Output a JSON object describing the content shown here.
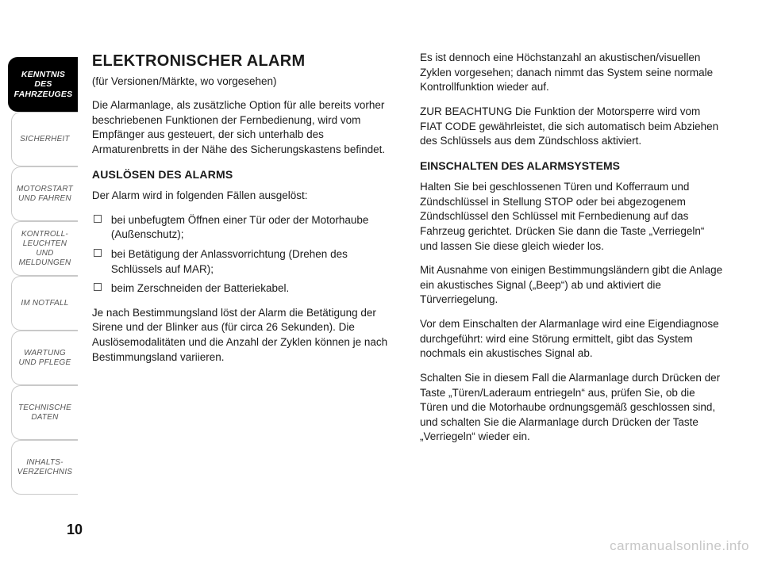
{
  "page_number": "10",
  "watermark": "carmanualsonline.info",
  "sidebar": {
    "active_bg": "#000000",
    "active_fg": "#ffffff",
    "inactive_fg": "#555555",
    "border": "#c9c9c9",
    "items": [
      {
        "label": "KENNTNIS\nDES FAHRZEUGES",
        "active": true
      },
      {
        "label": "SICHERHEIT",
        "active": false
      },
      {
        "label": "MOTORSTART\nUND FAHREN",
        "active": false
      },
      {
        "label": "KONTROLL-\nLEUCHTEN\nUND MELDUNGEN",
        "active": false
      },
      {
        "label": "IM NOTFALL",
        "active": false
      },
      {
        "label": "WARTUNG\nUND PFLEGE",
        "active": false
      },
      {
        "label": "TECHNISCHE\nDATEN",
        "active": false
      },
      {
        "label": "INHALTS-\nVERZEICHNIS",
        "active": false
      }
    ]
  },
  "content": {
    "title": "ELEKTRONISCHER ALARM",
    "subtitle": "(für Versionen/Märkte, wo vorgesehen)",
    "col1": {
      "intro": "Die Alarmanlage, als zusätzliche Option für alle bereits vorher beschriebenen Funktionen der Fernbedienung, wird vom Empfänger aus gesteuert, der sich unterhalb des Armaturenbretts in der Nähe des Sicherungskastens befindet.",
      "heading_trigger": "AUSLÖSEN DES ALARMS",
      "trigger_lead": "Der Alarm wird in folgenden Fällen ausgelöst:",
      "bullets": [
        "bei unbefugtem Öffnen einer Tür oder der Motorhaube (Außenschutz);",
        "bei Betätigung der Anlassvorrichtung (Drehen des Schlüssels auf MAR);",
        "beim Zerschneiden der Batteriekabel."
      ],
      "trigger_tail": "Je nach Bestimmungsland löst der Alarm die Betätigung der Sirene und der Blinker aus (für circa 26 Sekunden). Die Auslösemodalitäten und die Anzahl der Zyklen können je nach Bestimmungsland variieren."
    },
    "col2": {
      "p1": "Es ist dennoch eine Höchstanzahl an akustischen/visuellen Zyklen vorgesehen; danach nimmt das System seine normale Kontrollfunktion wieder auf.",
      "p2": "ZUR BEACHTUNG Die Funktion der Motorsperre wird vom FIAT CODE gewährleistet, die sich automatisch beim Abziehen des Schlüssels aus dem Zündschloss aktiviert.",
      "heading_on": "EINSCHALTEN DES ALARMSYSTEMS",
      "p3": "Halten Sie bei geschlossenen Türen und Kofferraum und Zündschlüssel in Stellung STOP oder bei abgezogenem Zündschlüssel den Schlüssel mit Fernbedienung auf das Fahrzeug gerichtet. Drücken Sie dann die Taste „Verriegeln“ und lassen Sie diese gleich wieder los.",
      "p4": "Mit Ausnahme von einigen Bestimmungsländern gibt die Anlage ein akustisches Signal („Beep“) ab und aktiviert die Türverriegelung.",
      "p5": "Vor dem Einschalten der Alarmanlage wird eine Eigendiagnose durchgeführt: wird eine Störung ermittelt, gibt das System nochmals ein akustisches Signal ab.",
      "p6": "Schalten Sie in diesem Fall die Alarmanlage durch Drücken der Taste „Türen/Laderaum entriegeln“ aus, prüfen Sie, ob die Türen und die Motorhaube ordnungsgemäß geschlossen sind, und schalten Sie die Alarmanlage durch Drücken der Taste „Verriegeln“ wieder ein."
    }
  }
}
